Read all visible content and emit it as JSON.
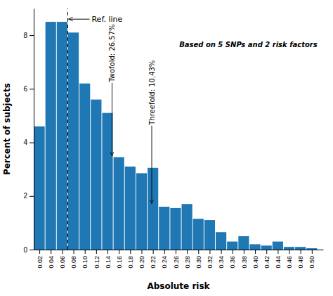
{
  "chart_data": {
    "type": "bar",
    "xlabel": "Absolute risk",
    "ylabel": "Percent of subjects",
    "x": [
      0.02,
      0.04,
      0.06,
      0.08,
      0.1,
      0.12,
      0.14,
      0.16,
      0.18,
      0.2,
      0.22,
      0.24,
      0.26,
      0.28,
      0.3,
      0.32,
      0.34,
      0.36,
      0.38,
      0.4,
      0.42,
      0.44,
      0.46,
      0.48,
      0.5
    ],
    "values": [
      4.6,
      8.5,
      8.5,
      8.1,
      6.2,
      5.6,
      5.1,
      3.45,
      3.1,
      2.85,
      3.05,
      1.6,
      1.55,
      1.7,
      1.15,
      1.1,
      0.65,
      0.3,
      0.5,
      0.2,
      0.15,
      0.3,
      0.1,
      0.1,
      0.05
    ],
    "xlim": [
      0.01,
      0.52
    ],
    "xticks": [
      0.02,
      0.04,
      0.06,
      0.08,
      {
        "value": 0.1,
        "label": "0.10"
      },
      0.12,
      0.14,
      0.16,
      0.18,
      {
        "value": 0.2,
        "label": "0.20"
      },
      0.22,
      0.24,
      0.26,
      0.28,
      {
        "value": 0.3,
        "label": "0.30"
      },
      0.32,
      0.34,
      0.36,
      0.38,
      {
        "value": 0.4,
        "label": "0.40"
      },
      0.42,
      0.44,
      0.46,
      0.48,
      {
        "value": 0.5,
        "label": "0.50"
      }
    ],
    "ylim": [
      0,
      9
    ],
    "yticks": [
      0,
      2,
      4,
      6,
      8
    ],
    "ref_line": {
      "x": 0.07,
      "label": "Ref. line"
    },
    "annotations": [
      "Twofold: 26.57%",
      "Threefold: 10.43%",
      "Based on 5 SNPs and 2 risk factors"
    ],
    "grid": false
  }
}
